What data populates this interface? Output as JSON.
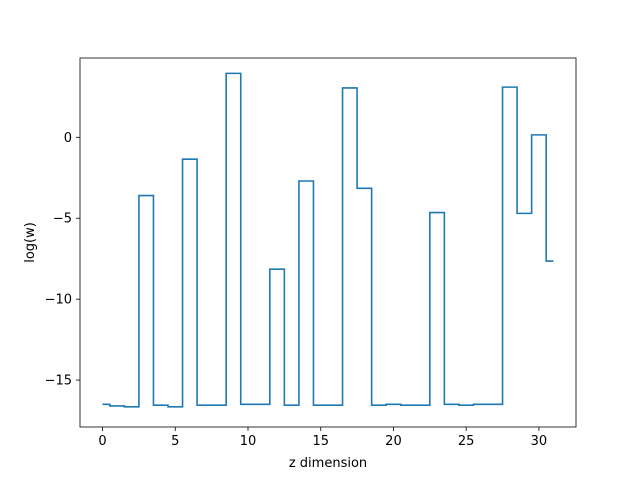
{
  "chart_data": {
    "type": "line",
    "drawstyle": "steps-mid",
    "title": "",
    "xlabel": "z dimension",
    "ylabel": "log(w)",
    "xlim": [
      -1.55,
      32.55
    ],
    "ylim": [
      -17.9,
      4.9
    ],
    "xticks": [
      0,
      5,
      10,
      15,
      20,
      25,
      30
    ],
    "yticks": [
      -15,
      -10,
      -5,
      0
    ],
    "ytick_labels": [
      "−15",
      "−10",
      "−5",
      "0"
    ],
    "grid": false,
    "legend": false,
    "series": [
      {
        "color": "#1f77b4",
        "x": [
          0,
          1,
          2,
          3,
          4,
          5,
          6,
          7,
          8,
          9,
          10,
          11,
          12,
          13,
          14,
          15,
          16,
          17,
          18,
          19,
          20,
          21,
          22,
          23,
          24,
          25,
          26,
          27,
          28,
          29,
          30,
          31
        ],
        "y": [
          -16.5,
          -16.6,
          -16.65,
          -3.6,
          -16.55,
          -16.65,
          -1.35,
          -16.55,
          -16.55,
          3.95,
          -16.5,
          -16.5,
          -8.15,
          -16.55,
          -2.7,
          -16.55,
          -16.55,
          3.05,
          -3.15,
          -16.55,
          -16.5,
          -16.55,
          -16.55,
          -4.65,
          -16.5,
          -16.55,
          -16.5,
          -16.5,
          3.1,
          -4.7,
          0.15,
          -7.65
        ]
      }
    ]
  }
}
